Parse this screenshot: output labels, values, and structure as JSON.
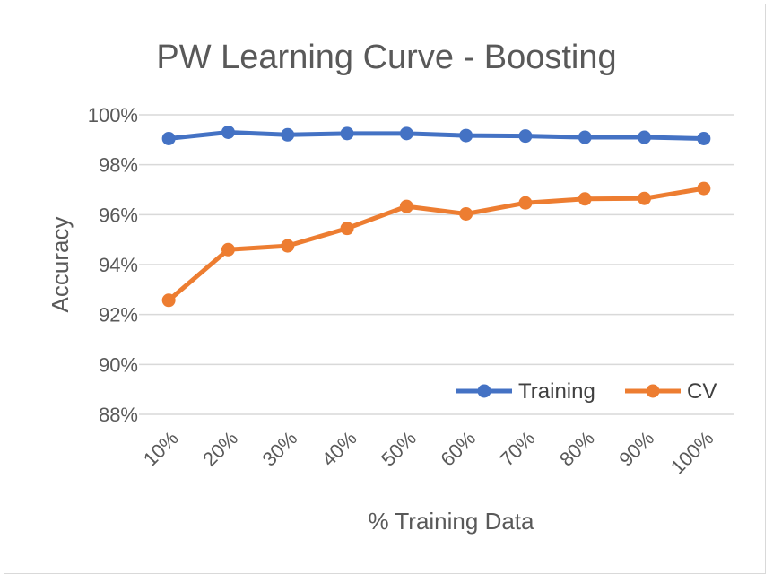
{
  "colors": {
    "training": "#4472c4",
    "cv": "#ed7d31",
    "grid": "#d9d9d9",
    "text": "#595959"
  },
  "chart_data": {
    "type": "line",
    "title": "PW Learning Curve - Boosting",
    "xlabel": "% Training Data",
    "ylabel": "Accuracy",
    "categories": [
      "10%",
      "20%",
      "30%",
      "40%",
      "50%",
      "60%",
      "70%",
      "80%",
      "90%",
      "100%"
    ],
    "ylim": [
      88,
      100
    ],
    "yticks": [
      88,
      90,
      92,
      94,
      96,
      98,
      100
    ],
    "ytick_labels": [
      "88%",
      "90%",
      "92%",
      "94%",
      "96%",
      "98%",
      "100%"
    ],
    "grid": true,
    "legend_position": "bottom-right",
    "series": [
      {
        "name": "Training",
        "values": [
          99.05,
          99.3,
          99.2,
          99.25,
          99.25,
          99.17,
          99.15,
          99.1,
          99.1,
          99.05
        ]
      },
      {
        "name": "CV",
        "values": [
          92.57,
          94.6,
          94.75,
          95.45,
          96.33,
          96.03,
          96.47,
          96.63,
          96.65,
          97.05
        ]
      }
    ]
  }
}
